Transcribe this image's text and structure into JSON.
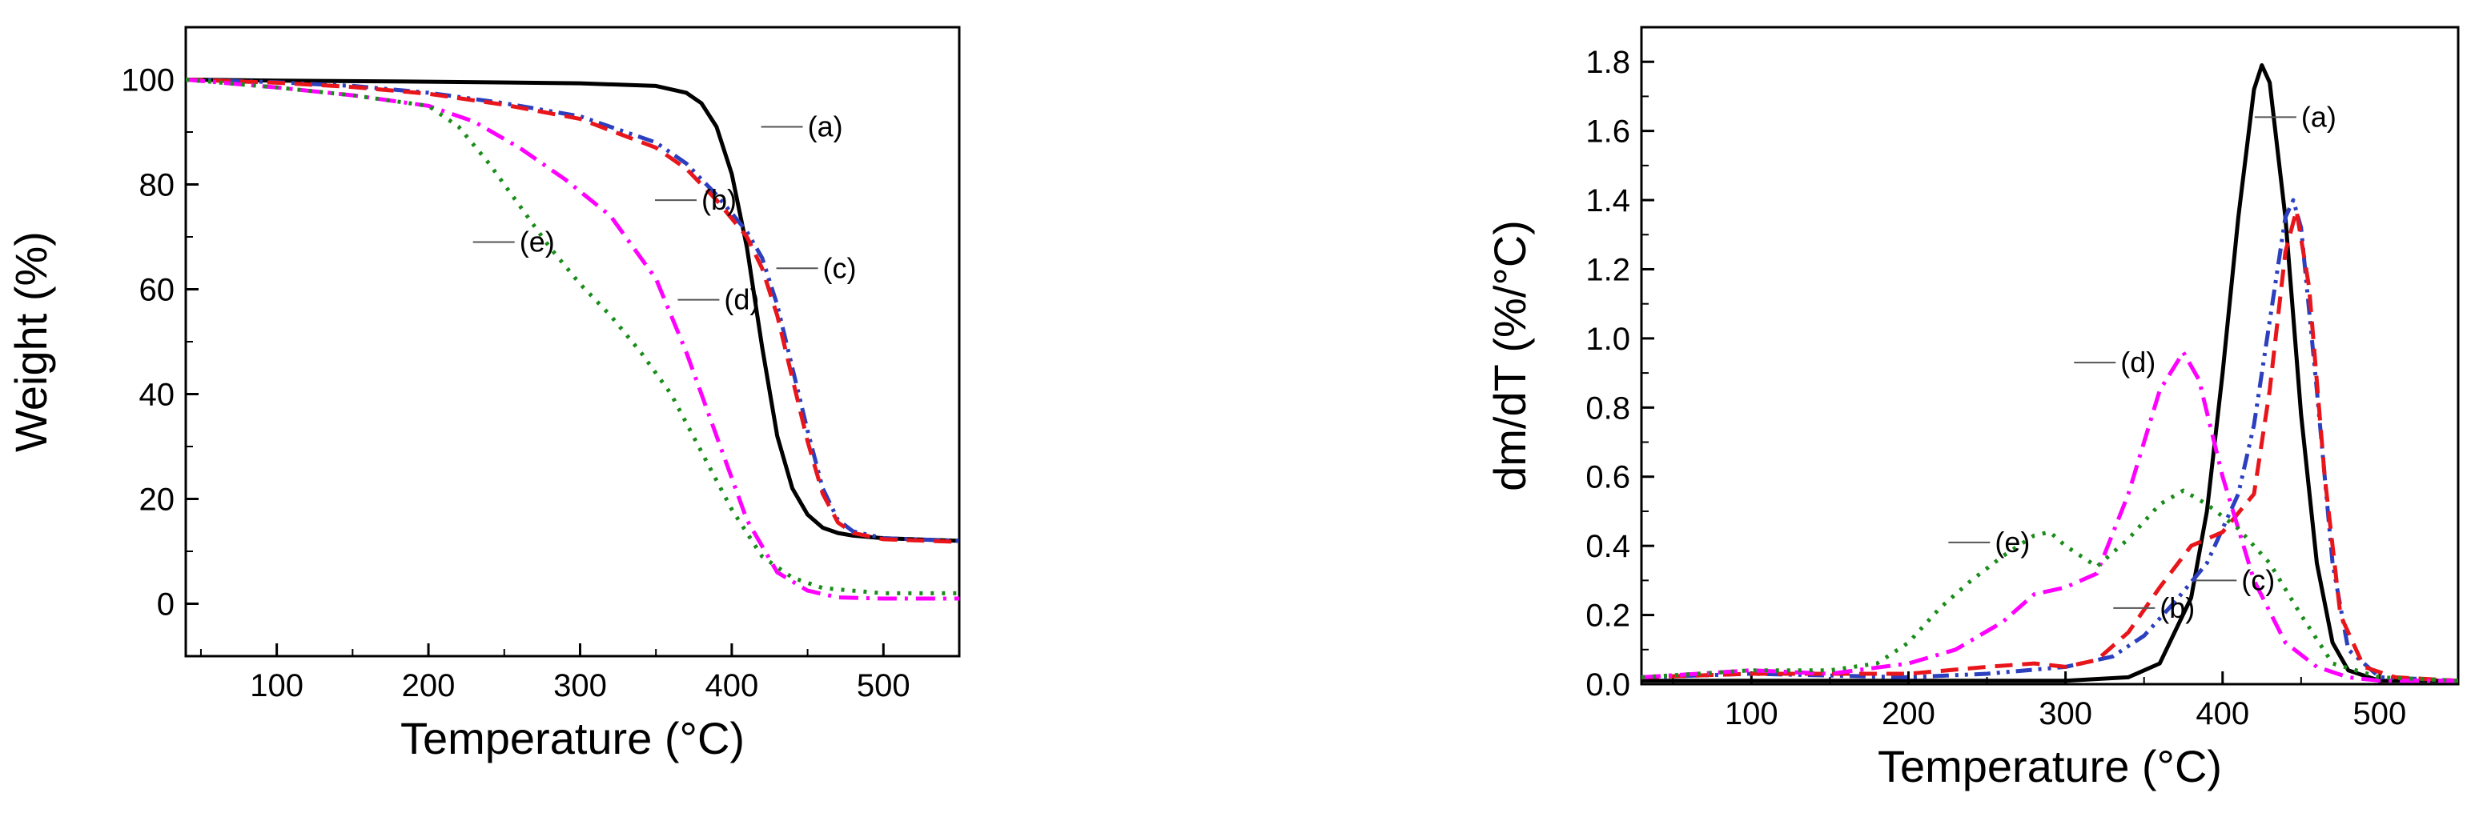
{
  "chart_data": [
    {
      "type": "line",
      "panel": "left",
      "xlabel": "Temperature (°C)",
      "ylabel": "Weight (%)",
      "xlim": [
        40,
        550
      ],
      "ylim": [
        -10,
        110
      ],
      "xticks": [
        100,
        200,
        300,
        400,
        500
      ],
      "yticks": [
        0,
        20,
        40,
        60,
        80,
        100
      ],
      "grid": false,
      "legend": "none",
      "series": [
        {
          "name": "(a)",
          "color": "#000000",
          "dash": "solid",
          "x": [
            40,
            100,
            200,
            300,
            350,
            370,
            380,
            390,
            400,
            410,
            420,
            430,
            440,
            450,
            460,
            470,
            480,
            500,
            550
          ],
          "y": [
            100,
            99.8,
            99.6,
            99.3,
            98.8,
            97.5,
            95.5,
            91,
            82,
            68,
            49,
            32,
            22,
            17,
            14.5,
            13.5,
            13,
            12.5,
            12
          ]
        },
        {
          "name": "(b)",
          "color": "#2b3fbf",
          "dash": "dash-dot-dot",
          "x": [
            40,
            100,
            150,
            200,
            250,
            300,
            350,
            370,
            390,
            410,
            420,
            430,
            440,
            450,
            460,
            470,
            480,
            500,
            550
          ],
          "y": [
            100,
            99.5,
            98.8,
            97.5,
            95.5,
            93,
            88,
            84,
            78,
            71,
            66,
            57,
            45,
            33,
            22,
            16,
            13.8,
            12.5,
            12
          ]
        },
        {
          "name": "(c)",
          "color": "#e8151b",
          "dash": "dash",
          "x": [
            40,
            100,
            150,
            200,
            250,
            300,
            350,
            370,
            390,
            410,
            420,
            430,
            440,
            450,
            460,
            470,
            480,
            500,
            550
          ],
          "y": [
            100,
            99.4,
            98.6,
            97.3,
            95.2,
            92.5,
            87,
            83,
            77,
            70,
            64,
            55,
            43,
            31,
            21,
            15.5,
            13.5,
            12.3,
            11.8
          ]
        },
        {
          "name": "(d)",
          "color": "#ff00ff",
          "dash": "dash-dot",
          "x": [
            40,
            100,
            150,
            200,
            230,
            260,
            290,
            320,
            350,
            370,
            390,
            410,
            430,
            450,
            470,
            500,
            550
          ],
          "y": [
            100,
            98.5,
            97,
            95,
            92,
            87,
            81,
            74,
            62,
            48,
            32,
            16,
            6,
            2.5,
            1.2,
            1,
            1
          ]
        },
        {
          "name": "(e)",
          "color": "#1a8c1a",
          "dash": "dot",
          "x": [
            40,
            100,
            150,
            200,
            220,
            240,
            260,
            280,
            300,
            320,
            340,
            360,
            380,
            400,
            420,
            440,
            460,
            500,
            550
          ],
          "y": [
            100,
            98.5,
            97,
            95,
            91,
            84,
            76,
            68,
            61,
            55,
            48,
            40,
            29,
            18,
            9,
            5,
            3,
            2,
            2
          ]
        }
      ],
      "annotations": [
        {
          "text": "(a)",
          "x": 450,
          "y": 91
        },
        {
          "text": "(b)",
          "x": 380,
          "y": 77
        },
        {
          "text": "(c)",
          "x": 460,
          "y": 64
        },
        {
          "text": "(d)",
          "x": 395,
          "y": 58
        },
        {
          "text": "(e)",
          "x": 260,
          "y": 69
        }
      ]
    },
    {
      "type": "line",
      "panel": "right",
      "xlabel": "Temperature (°C)",
      "ylabel": "dm/dT (%/°C)",
      "xlim": [
        30,
        550
      ],
      "ylim": [
        0,
        1.9
      ],
      "xticks": [
        100,
        200,
        300,
        400,
        500
      ],
      "yticks": [
        "0.0",
        "0.2",
        "0.4",
        "0.6",
        "0.8",
        "1.0",
        "1.2",
        "1.4",
        "1.6",
        "1.8"
      ],
      "grid": false,
      "legend": "none",
      "series": [
        {
          "name": "(a)",
          "color": "#000000",
          "dash": "solid",
          "x": [
            30,
            100,
            200,
            300,
            340,
            360,
            380,
            390,
            400,
            410,
            420,
            425,
            430,
            440,
            450,
            460,
            470,
            480,
            500,
            550
          ],
          "y": [
            0.01,
            0.01,
            0.01,
            0.01,
            0.02,
            0.06,
            0.25,
            0.5,
            0.9,
            1.35,
            1.72,
            1.79,
            1.74,
            1.35,
            0.78,
            0.35,
            0.12,
            0.04,
            0.01,
            0.01
          ]
        },
        {
          "name": "(b)",
          "color": "#2b3fbf",
          "dash": "dash-dot-dot",
          "x": [
            30,
            100,
            200,
            250,
            300,
            330,
            350,
            370,
            390,
            410,
            420,
            430,
            440,
            445,
            450,
            460,
            470,
            480,
            500,
            550
          ],
          "y": [
            0.02,
            0.03,
            0.02,
            0.03,
            0.05,
            0.08,
            0.14,
            0.24,
            0.35,
            0.55,
            0.75,
            1.05,
            1.35,
            1.4,
            1.32,
            0.85,
            0.35,
            0.1,
            0.02,
            0.01
          ]
        },
        {
          "name": "(c)",
          "color": "#e8151b",
          "dash": "dash",
          "x": [
            30,
            100,
            200,
            250,
            280,
            300,
            320,
            340,
            360,
            380,
            400,
            420,
            430,
            440,
            447,
            455,
            465,
            475,
            490,
            510,
            550
          ],
          "y": [
            0.02,
            0.03,
            0.03,
            0.05,
            0.06,
            0.05,
            0.07,
            0.15,
            0.28,
            0.4,
            0.44,
            0.55,
            0.85,
            1.25,
            1.37,
            1.15,
            0.6,
            0.2,
            0.05,
            0.02,
            0.01
          ]
        },
        {
          "name": "(d)",
          "color": "#ff00ff",
          "dash": "dash-dot",
          "x": [
            30,
            100,
            150,
            200,
            230,
            260,
            280,
            300,
            320,
            340,
            360,
            375,
            385,
            400,
            420,
            440,
            460,
            480,
            500,
            550
          ],
          "y": [
            0.02,
            0.04,
            0.03,
            0.06,
            0.1,
            0.18,
            0.26,
            0.28,
            0.32,
            0.55,
            0.85,
            0.96,
            0.88,
            0.6,
            0.3,
            0.12,
            0.05,
            0.02,
            0.01,
            0.01
          ]
        },
        {
          "name": "(e)",
          "color": "#1a8c1a",
          "dash": "dot",
          "x": [
            30,
            100,
            150,
            180,
            200,
            220,
            240,
            260,
            280,
            290,
            300,
            320,
            340,
            360,
            375,
            390,
            410,
            430,
            450,
            470,
            500,
            550
          ],
          "y": [
            0.02,
            0.04,
            0.04,
            0.06,
            0.12,
            0.22,
            0.3,
            0.37,
            0.43,
            0.44,
            0.4,
            0.34,
            0.42,
            0.52,
            0.56,
            0.52,
            0.45,
            0.35,
            0.2,
            0.06,
            0.02,
            0.01
          ]
        }
      ],
      "annotations": [
        {
          "text": "(a)",
          "x": 450,
          "y": 1.64
        },
        {
          "text": "(b)",
          "x": 360,
          "y": 0.22
        },
        {
          "text": "(c)",
          "x": 412,
          "y": 0.3
        },
        {
          "text": "(d)",
          "x": 335,
          "y": 0.93
        },
        {
          "text": "(e)",
          "x": 255,
          "y": 0.41
        }
      ]
    }
  ]
}
